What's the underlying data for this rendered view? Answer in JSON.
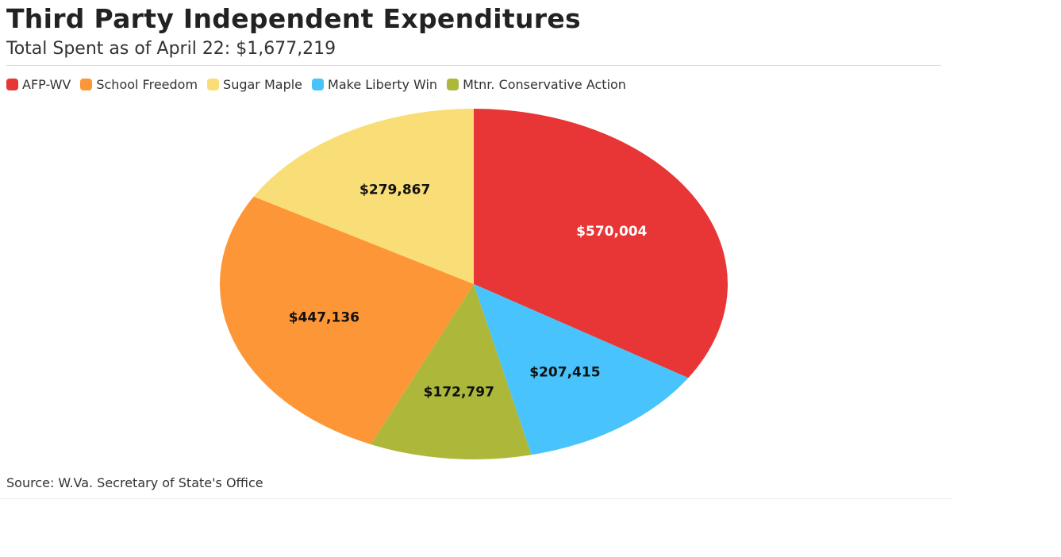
{
  "chart_data": {
    "type": "pie",
    "title": "Third Party Independent Expenditures",
    "subtitle": "Total Spent as of April 22: $1,677,219",
    "source": "Source: W.Va. Secretary of State's Office",
    "legend_placement": "top-left",
    "slices": [
      {
        "name": "AFP-WV",
        "value": 570004,
        "label": "$570,004",
        "color": "#e83535",
        "label_color": "#ffffff"
      },
      {
        "name": "Make Liberty Win",
        "value": 207415,
        "label": "$207,415",
        "color": "#48c3fb",
        "label_color": "#111111"
      },
      {
        "name": "Mtnr. Conservative Action",
        "value": 172797,
        "label": "$172,797",
        "color": "#adb83b",
        "label_color": "#111111"
      },
      {
        "name": "School Freedom",
        "value": 447136,
        "label": "$447,136",
        "color": "#fd9636",
        "label_color": "#111111"
      },
      {
        "name": "Sugar Maple",
        "value": 279867,
        "label": "$279,867",
        "color": "#f9de77",
        "label_color": "#111111"
      }
    ],
    "legend": [
      {
        "name": "AFP-WV",
        "color": "#e83535"
      },
      {
        "name": "School Freedom",
        "color": "#fd9636"
      },
      {
        "name": "Sugar Maple",
        "color": "#f9de77"
      },
      {
        "name": "Make Liberty Win",
        "color": "#48c3fb"
      },
      {
        "name": "Mtnr. Conservative Action",
        "color": "#adb83b"
      }
    ]
  }
}
